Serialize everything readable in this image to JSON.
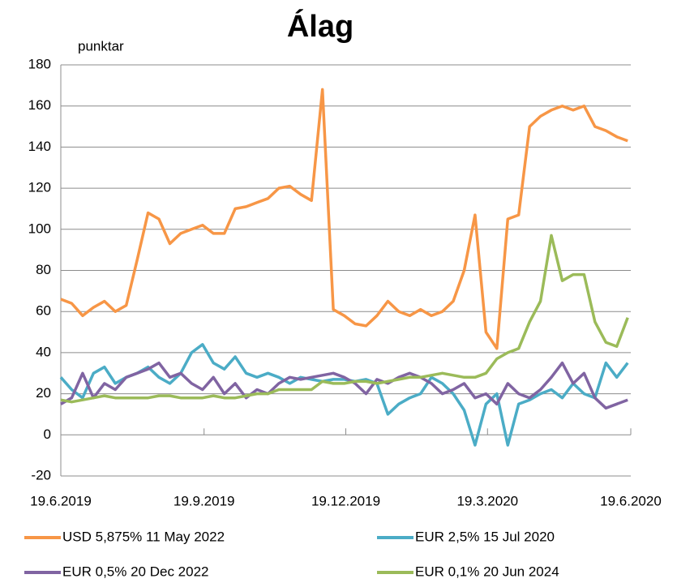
{
  "chart_data": {
    "type": "line",
    "title": "Álag",
    "ylabel": "punktar",
    "x": [
      "19.6.2019",
      "26.6.2019",
      "3.7.2019",
      "10.7.2019",
      "17.7.2019",
      "24.7.2019",
      "31.7.2019",
      "7.8.2019",
      "14.8.2019",
      "21.8.2019",
      "28.8.2019",
      "4.9.2019",
      "11.9.2019",
      "18.9.2019",
      "25.9.2019",
      "2.10.2019",
      "9.10.2019",
      "16.10.2019",
      "23.10.2019",
      "30.10.2019",
      "6.11.2019",
      "13.11.2019",
      "20.11.2019",
      "27.11.2019",
      "4.12.2019",
      "11.12.2019",
      "18.12.2019",
      "25.12.2019",
      "1.1.2020",
      "8.1.2020",
      "15.1.2020",
      "22.1.2020",
      "29.1.2020",
      "5.2.2020",
      "12.2.2020",
      "19.2.2020",
      "26.2.2020",
      "4.3.2020",
      "11.3.2020",
      "18.3.2020",
      "25.3.2020",
      "1.4.2020",
      "8.4.2020",
      "15.4.2020",
      "22.4.2020",
      "29.4.2020",
      "6.5.2020",
      "13.5.2020",
      "20.5.2020",
      "27.5.2020",
      "3.6.2020",
      "10.6.2020",
      "17.6.2020"
    ],
    "series": [
      {
        "name": "USD 5,875% 11 May 2022",
        "color": "#f79646",
        "values": [
          66,
          64,
          58,
          62,
          65,
          60,
          63,
          85,
          108,
          105,
          93,
          98,
          100,
          102,
          98,
          98,
          110,
          111,
          113,
          115,
          120,
          121,
          117,
          114,
          168,
          61,
          58,
          54,
          53,
          58,
          65,
          60,
          58,
          61,
          58,
          60,
          65,
          80,
          107,
          50,
          42,
          105,
          107,
          150,
          155,
          158,
          160,
          158,
          160,
          150,
          148,
          145,
          143
        ]
      },
      {
        "name": "EUR 2,5% 15 Jul 2020",
        "color": "#4bacc6",
        "values": [
          28,
          22,
          18,
          30,
          33,
          25,
          28,
          30,
          33,
          28,
          25,
          30,
          40,
          44,
          35,
          32,
          38,
          30,
          28,
          30,
          28,
          25,
          28,
          27,
          26,
          27,
          27,
          26,
          27,
          25,
          10,
          15,
          18,
          20,
          28,
          25,
          20,
          12,
          -5,
          15,
          20,
          -5,
          15,
          17,
          20,
          22,
          18,
          25,
          20,
          18,
          35,
          28,
          35
        ]
      },
      {
        "name": "EUR 0,5% 20 Dec 2022",
        "color": "#8064a2",
        "values": [
          15,
          18,
          30,
          18,
          25,
          22,
          28,
          30,
          32,
          35,
          28,
          30,
          25,
          22,
          28,
          20,
          25,
          18,
          22,
          20,
          25,
          28,
          27,
          28,
          29,
          30,
          28,
          25,
          20,
          27,
          25,
          28,
          30,
          28,
          25,
          20,
          22,
          25,
          18,
          20,
          15,
          25,
          20,
          18,
          22,
          28,
          35,
          25,
          30,
          18,
          13,
          15,
          17
        ]
      },
      {
        "name": "EUR 0,1% 20 Jun 2024",
        "color": "#9bbb59",
        "values": [
          17,
          16,
          17,
          18,
          19,
          18,
          18,
          18,
          18,
          19,
          19,
          18,
          18,
          18,
          19,
          18,
          18,
          19,
          20,
          20,
          22,
          22,
          22,
          22,
          26,
          25,
          25,
          26,
          26,
          25,
          26,
          27,
          28,
          28,
          29,
          30,
          29,
          28,
          28,
          30,
          37,
          40,
          42,
          55,
          65,
          97,
          75,
          78,
          78,
          55,
          45,
          43,
          57
        ]
      }
    ],
    "xlim": [
      "19.6.2019",
      "19.6.2020"
    ],
    "xticks": [
      "19.6.2019",
      "19.9.2019",
      "19.12.2019",
      "19.3.2020",
      "19.6.2020"
    ],
    "ylim": [
      -20,
      180
    ],
    "yticks": [
      -20,
      0,
      20,
      40,
      60,
      80,
      100,
      120,
      140,
      160,
      180
    ],
    "grid": true
  }
}
